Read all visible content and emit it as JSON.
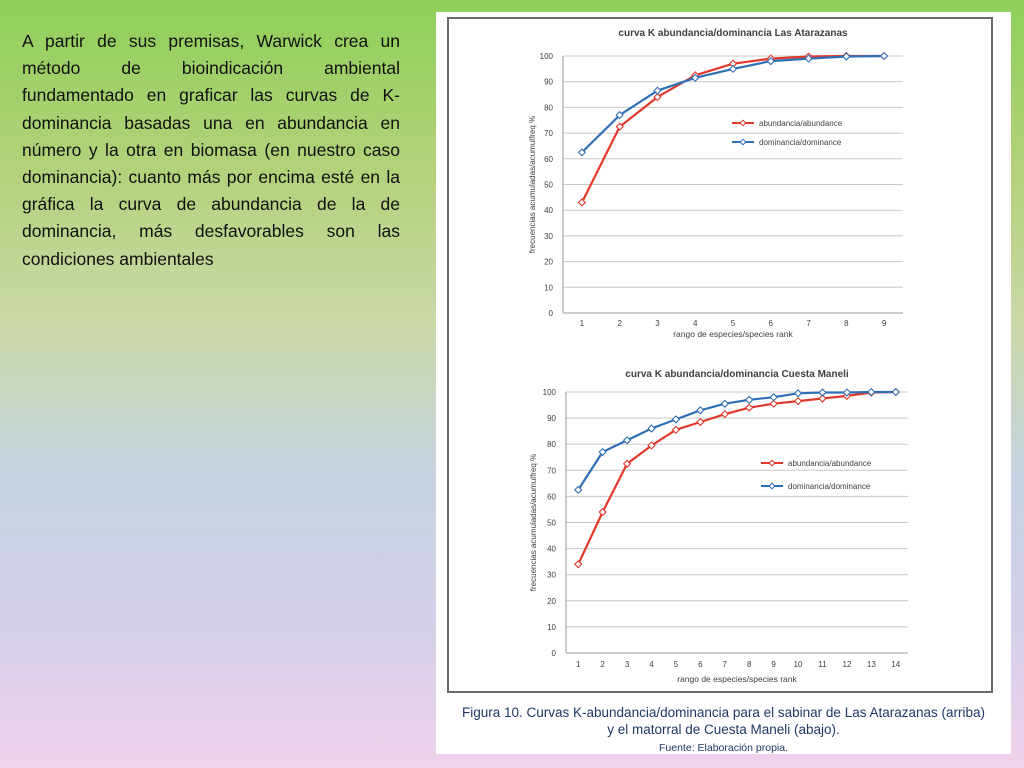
{
  "slide": {
    "body_text": "A partir de sus premisas, Warwick crea un método de bioindicación ambiental fundamentado en graficar las curvas de K-dominancia basadas una en abundancia en número y la otra en biomasa (en nuestro caso dominancia): cuanto más por encima esté en la gráfica la curva de abundancia de la de dominancia, más desfavorables son las condiciones ambientales"
  },
  "figure": {
    "caption_line1": "Figura 10. Curvas K-abundancia/dominancia para el sabinar de Las Atarazanas (arriba)",
    "caption_line2": "y el matorral de Cuesta Maneli (abajo).",
    "source": "Fuente: Elaboración propia."
  },
  "colors": {
    "abundance": "#e0382a",
    "dominance": "#2f6fb5",
    "grid": "#c8c8c8",
    "text": "#404040"
  },
  "chart_data": [
    {
      "type": "line",
      "title": "curva K abundancia/dominancia Las Atarazanas",
      "xlabel": "rango de especies/species rank",
      "ylabel": "frecuencias acumuladas/acumulfreq %",
      "x": [
        1,
        2,
        3,
        4,
        5,
        6,
        7,
        8,
        9
      ],
      "ylim": [
        0,
        100
      ],
      "yticks": [
        0,
        10,
        20,
        30,
        40,
        50,
        60,
        70,
        80,
        90,
        100
      ],
      "grid": "horizontal",
      "legend_position": "right",
      "series": [
        {
          "name": "abundancia/abundance",
          "color": "#e0382a",
          "values": [
            43,
            72.5,
            84,
            92.5,
            97,
            99,
            99.8,
            100,
            100
          ]
        },
        {
          "name": "dominancia/dominance",
          "color": "#2f6fb5",
          "values": [
            62.5,
            77,
            86.5,
            91.5,
            95,
            98,
            99,
            99.8,
            100
          ]
        }
      ]
    },
    {
      "type": "line",
      "title": "curva K abundancia/dominancia Cuesta Maneli",
      "xlabel": "rango de especies/species rank",
      "ylabel": "frecuencias acumuladas/acumulfreq %",
      "x": [
        1,
        2,
        3,
        4,
        5,
        6,
        7,
        8,
        9,
        10,
        11,
        12,
        13,
        14
      ],
      "ylim": [
        0,
        100
      ],
      "yticks": [
        0,
        10,
        20,
        30,
        40,
        50,
        60,
        70,
        80,
        90,
        100
      ],
      "grid": "horizontal",
      "legend_position": "right",
      "series": [
        {
          "name": "abundancia/abundance",
          "color": "#e0382a",
          "values": [
            34,
            54,
            72.5,
            79.5,
            85.5,
            88.5,
            91.5,
            94,
            95.5,
            96.5,
            97.5,
            98.5,
            99.8,
            100
          ]
        },
        {
          "name": "dominancia/dominance",
          "color": "#2f6fb5",
          "values": [
            62.5,
            77,
            81.5,
            86,
            89.5,
            93,
            95.5,
            97,
            98,
            99.5,
            99.8,
            99.8,
            100,
            100
          ]
        }
      ]
    }
  ]
}
